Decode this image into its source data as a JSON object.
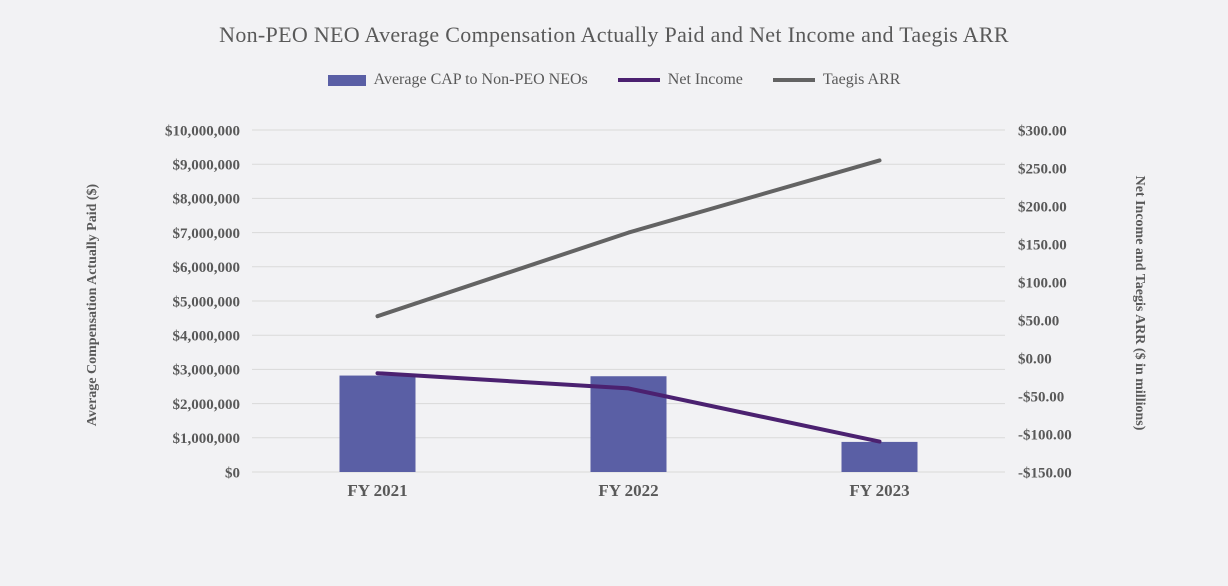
{
  "page": {
    "background": "#f2f2f4",
    "text_color": "#595959",
    "gridline_color": "#d9d9d9"
  },
  "chart_data": {
    "type": "combo",
    "title": "Non-PEO NEO Average Compensation Actually Paid and Net Income and Taegis ARR",
    "categories": [
      "FY 2021",
      "FY 2022",
      "FY 2023"
    ],
    "series": [
      {
        "name": "Average CAP to Non-PEO NEOs",
        "type": "bar",
        "axis": "left",
        "color": "#5a5fa5",
        "values": [
          2820000,
          2800000,
          880000
        ]
      },
      {
        "name": "Net Income",
        "type": "line",
        "axis": "right",
        "color": "#4b2170",
        "values": [
          -20,
          -40,
          -110
        ]
      },
      {
        "name": "Taegis ARR",
        "type": "line",
        "axis": "right",
        "color": "#636363",
        "values": [
          55,
          165,
          260
        ]
      }
    ],
    "left_axis": {
      "label": "Average Compensation Actually Paid ($)",
      "min": 0,
      "max": 10000000,
      "step": 1000000,
      "tick_format": "usd_comma",
      "tick_labels": [
        "$0",
        "$1,000,000",
        "$2,000,000",
        "$3,000,000",
        "$4,000,000",
        "$5,000,000",
        "$6,000,000",
        "$7,000,000",
        "$8,000,000",
        "$9,000,000",
        "$10,000,000"
      ]
    },
    "right_axis": {
      "label": "Net Income and Taegis ARR ($ in millions)",
      "min": -150,
      "max": 300,
      "step": 50,
      "tick_format": "usd_2dp",
      "tick_labels": [
        "$300.00",
        "$250.00",
        "$200.00",
        "$150.00",
        "$100.00",
        "$50.00",
        "$0.00",
        "-$50.00",
        "-$100.00",
        "-$150.00"
      ]
    },
    "grid": true,
    "legend_position": "top"
  }
}
